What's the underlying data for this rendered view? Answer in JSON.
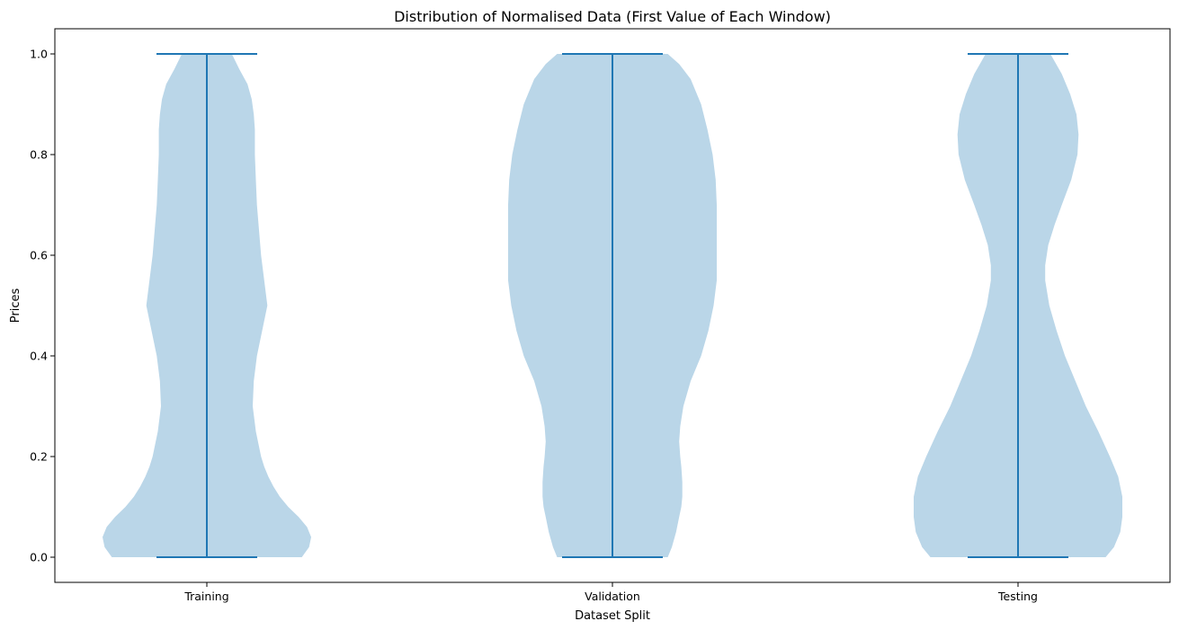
{
  "chart_data": {
    "type": "violin",
    "title": "Distribution of Normalised Data (First Value of Each Window)",
    "xlabel": "Dataset Split",
    "ylabel": "Prices",
    "categories": [
      "Training",
      "Validation",
      "Testing"
    ],
    "ylim": [
      -0.05,
      1.05
    ],
    "yticks": [
      0.0,
      0.2,
      0.4,
      0.6,
      0.8,
      1.0
    ],
    "ytick_labels": [
      "0.0",
      "0.2",
      "0.4",
      "0.6",
      "0.8",
      "1.0"
    ],
    "grid": false,
    "colors": {
      "body": "#bad6e8",
      "line": "#1f77b4"
    },
    "series": [
      {
        "category": "Training",
        "min": 0.0,
        "max": 1.0,
        "density": [
          [
            0.0,
            0.91
          ],
          [
            0.02,
            0.98
          ],
          [
            0.04,
            1.0
          ],
          [
            0.06,
            0.96
          ],
          [
            0.08,
            0.88
          ],
          [
            0.1,
            0.78
          ],
          [
            0.12,
            0.7
          ],
          [
            0.14,
            0.64
          ],
          [
            0.16,
            0.59
          ],
          [
            0.18,
            0.55
          ],
          [
            0.2,
            0.52
          ],
          [
            0.25,
            0.47
          ],
          [
            0.3,
            0.44
          ],
          [
            0.35,
            0.45
          ],
          [
            0.4,
            0.48
          ],
          [
            0.45,
            0.53
          ],
          [
            0.5,
            0.58
          ],
          [
            0.55,
            0.55
          ],
          [
            0.6,
            0.52
          ],
          [
            0.65,
            0.5
          ],
          [
            0.7,
            0.48
          ],
          [
            0.75,
            0.47
          ],
          [
            0.8,
            0.46
          ],
          [
            0.85,
            0.46
          ],
          [
            0.88,
            0.45
          ],
          [
            0.91,
            0.43
          ],
          [
            0.94,
            0.39
          ],
          [
            0.97,
            0.31
          ],
          [
            1.0,
            0.24
          ]
        ]
      },
      {
        "category": "Validation",
        "min": 0.0,
        "max": 1.0,
        "density": [
          [
            0.0,
            0.53
          ],
          [
            0.02,
            0.57
          ],
          [
            0.05,
            0.61
          ],
          [
            0.08,
            0.64
          ],
          [
            0.1,
            0.66
          ],
          [
            0.12,
            0.67
          ],
          [
            0.15,
            0.67
          ],
          [
            0.18,
            0.66
          ],
          [
            0.2,
            0.65
          ],
          [
            0.23,
            0.64
          ],
          [
            0.26,
            0.65
          ],
          [
            0.3,
            0.68
          ],
          [
            0.35,
            0.75
          ],
          [
            0.4,
            0.85
          ],
          [
            0.45,
            0.92
          ],
          [
            0.5,
            0.97
          ],
          [
            0.55,
            1.0
          ],
          [
            0.6,
            1.0
          ],
          [
            0.65,
            1.0
          ],
          [
            0.7,
            1.0
          ],
          [
            0.75,
            0.99
          ],
          [
            0.8,
            0.96
          ],
          [
            0.85,
            0.91
          ],
          [
            0.9,
            0.85
          ],
          [
            0.95,
            0.75
          ],
          [
            0.98,
            0.64
          ],
          [
            1.0,
            0.53
          ]
        ]
      },
      {
        "category": "Testing",
        "min": 0.0,
        "max": 1.0,
        "density": [
          [
            0.0,
            0.84
          ],
          [
            0.02,
            0.92
          ],
          [
            0.05,
            0.98
          ],
          [
            0.08,
            1.0
          ],
          [
            0.12,
            1.0
          ],
          [
            0.16,
            0.96
          ],
          [
            0.2,
            0.88
          ],
          [
            0.25,
            0.77
          ],
          [
            0.3,
            0.65
          ],
          [
            0.35,
            0.55
          ],
          [
            0.4,
            0.45
          ],
          [
            0.45,
            0.37
          ],
          [
            0.5,
            0.3
          ],
          [
            0.55,
            0.26
          ],
          [
            0.58,
            0.26
          ],
          [
            0.62,
            0.29
          ],
          [
            0.66,
            0.35
          ],
          [
            0.7,
            0.42
          ],
          [
            0.75,
            0.51
          ],
          [
            0.8,
            0.57
          ],
          [
            0.84,
            0.58
          ],
          [
            0.88,
            0.56
          ],
          [
            0.92,
            0.5
          ],
          [
            0.96,
            0.42
          ],
          [
            1.0,
            0.31
          ]
        ]
      }
    ]
  }
}
